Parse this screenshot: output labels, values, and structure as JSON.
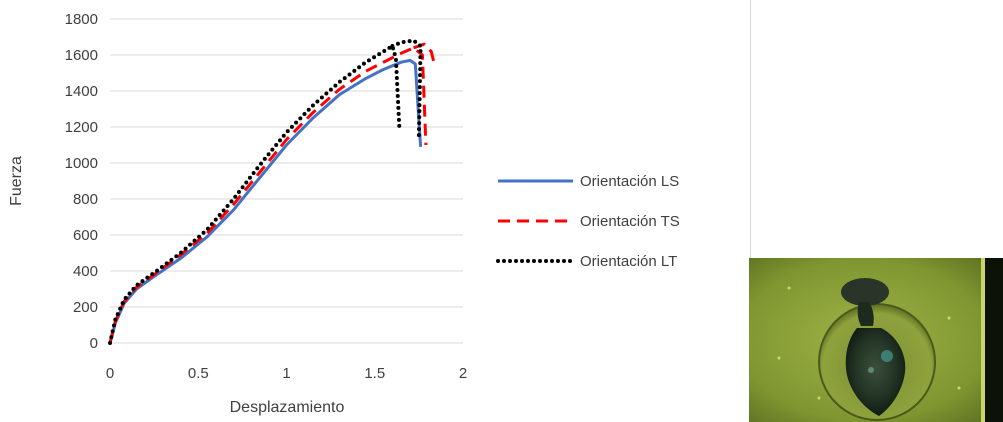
{
  "chart_data": {
    "type": "line",
    "xlabel": "Desplazamiento",
    "ylabel": "Fuerza",
    "xlim": [
      0,
      2
    ],
    "ylim": [
      0,
      1800
    ],
    "x_ticks": [
      "0",
      "0.5",
      "1",
      "1.5",
      "2"
    ],
    "y_ticks": [
      "0",
      "200",
      "400",
      "600",
      "800",
      "1000",
      "1200",
      "1400",
      "1600",
      "1800"
    ],
    "grid": "horizontal",
    "legend_position": "right",
    "series": [
      {
        "name": "Orientación LS",
        "color": "#4472c4",
        "style": "solid",
        "points": [
          [
            0,
            0
          ],
          [
            0.03,
            110
          ],
          [
            0.08,
            220
          ],
          [
            0.15,
            300
          ],
          [
            0.25,
            370
          ],
          [
            0.4,
            470
          ],
          [
            0.55,
            590
          ],
          [
            0.7,
            740
          ],
          [
            0.85,
            920
          ],
          [
            1.0,
            1100
          ],
          [
            1.15,
            1250
          ],
          [
            1.3,
            1380
          ],
          [
            1.45,
            1470
          ],
          [
            1.55,
            1520
          ],
          [
            1.65,
            1560
          ],
          [
            1.7,
            1570
          ],
          [
            1.73,
            1550
          ],
          [
            1.76,
            1090
          ]
        ]
      },
      {
        "name": "Orientación TS",
        "color": "#ff0000",
        "style": "dashed",
        "points": [
          [
            0,
            0
          ],
          [
            0.03,
            120
          ],
          [
            0.08,
            230
          ],
          [
            0.15,
            310
          ],
          [
            0.25,
            380
          ],
          [
            0.4,
            490
          ],
          [
            0.55,
            610
          ],
          [
            0.7,
            770
          ],
          [
            0.85,
            950
          ],
          [
            1.0,
            1130
          ],
          [
            1.15,
            1280
          ],
          [
            1.3,
            1410
          ],
          [
            1.45,
            1510
          ],
          [
            1.55,
            1560
          ],
          [
            1.65,
            1610
          ],
          [
            1.72,
            1640
          ],
          [
            1.77,
            1600
          ],
          [
            1.79,
            1100
          ]
        ]
      },
      {
        "name": "Orientación LT",
        "color": "#000000",
        "style": "dotted",
        "points": [
          [
            0,
            0
          ],
          [
            0.03,
            130
          ],
          [
            0.08,
            240
          ],
          [
            0.15,
            320
          ],
          [
            0.25,
            390
          ],
          [
            0.4,
            500
          ],
          [
            0.55,
            630
          ],
          [
            0.7,
            800
          ],
          [
            0.85,
            990
          ],
          [
            1.0,
            1170
          ],
          [
            1.15,
            1320
          ],
          [
            1.3,
            1450
          ],
          [
            1.45,
            1560
          ],
          [
            1.55,
            1620
          ],
          [
            1.6,
            1650
          ],
          [
            1.62,
            1580
          ],
          [
            1.64,
            1180
          ]
        ]
      },
      {
        "name": "",
        "color": "#ff0000",
        "style": "dashed",
        "points": [
          [
            1.72,
            1640
          ],
          [
            1.78,
            1660
          ],
          [
            1.82,
            1620
          ],
          [
            1.84,
            1540
          ]
        ]
      },
      {
        "name": "",
        "color": "#000000",
        "style": "dotted",
        "points": [
          [
            1.6,
            1650
          ],
          [
            1.65,
            1670
          ],
          [
            1.72,
            1680
          ],
          [
            1.76,
            1650
          ],
          [
            1.75,
            1150
          ]
        ]
      }
    ]
  },
  "legend": [
    {
      "label": "Orientación LS",
      "color": "#4472c4",
      "style": "solid"
    },
    {
      "label": "Orientación TS",
      "color": "#ff0000",
      "style": "dashed"
    },
    {
      "label": "Orientación LT",
      "color": "#000000",
      "style": "dotted"
    }
  ],
  "photo": {
    "icon": "fracture-specimen-photo",
    "background": "#8fa63a",
    "dark_region": "#1c2a1a"
  }
}
